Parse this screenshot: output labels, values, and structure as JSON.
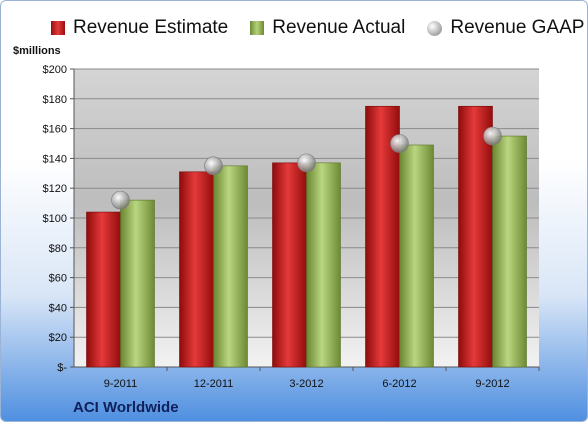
{
  "chart_data": {
    "type": "bar",
    "ylabel": "$millions",
    "categories": [
      "9-2011",
      "12-2011",
      "3-2012",
      "6-2012",
      "9-2012"
    ],
    "series": [
      {
        "name": "Revenue Estimate",
        "type": "bar",
        "color": "#c41e1e",
        "values": [
          104,
          131,
          137,
          175,
          175
        ]
      },
      {
        "name": "Revenue Actual",
        "type": "bar",
        "color": "#93b556",
        "values": [
          112,
          135,
          137,
          149,
          155
        ]
      },
      {
        "name": "Revenue GAAP",
        "type": "scatter",
        "color": "#b0b0b0",
        "values": [
          112,
          135,
          137,
          150,
          155
        ]
      }
    ],
    "ylim": [
      0,
      200
    ],
    "yticks": [
      0,
      20,
      40,
      60,
      80,
      100,
      120,
      140,
      160,
      180,
      200
    ],
    "ytick_labels": [
      "$-",
      "$20",
      "$40",
      "$60",
      "$80",
      "$100",
      "$120",
      "$140",
      "$160",
      "$180",
      "$200"
    ],
    "grid": true,
    "legend": "top",
    "footer": "ACI Worldwide"
  }
}
